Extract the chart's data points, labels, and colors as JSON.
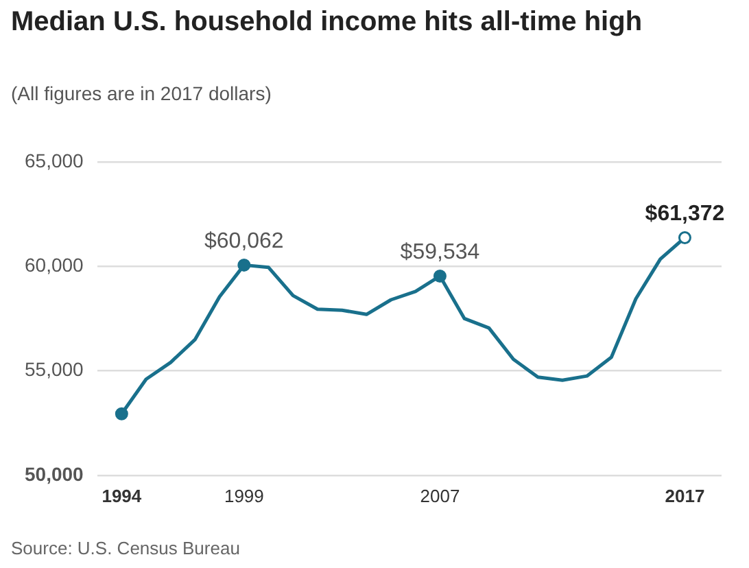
{
  "chart_data": {
    "type": "line",
    "title": "Median U.S. household income hits all-time high",
    "subtitle": "(All figures are in 2017 dollars)",
    "x": [
      1994,
      1995,
      1996,
      1997,
      1998,
      1999,
      2000,
      2001,
      2002,
      2003,
      2004,
      2005,
      2006,
      2007,
      2008,
      2009,
      2010,
      2011,
      2012,
      2013,
      2014,
      2015,
      2016,
      2017
    ],
    "series": [
      {
        "color": "#19708c",
        "values": [
          52940,
          54600,
          55400,
          56500,
          58550,
          60062,
          59950,
          58600,
          57950,
          57900,
          57700,
          58400,
          58800,
          59534,
          57500,
          57050,
          55550,
          54700,
          54550,
          54750,
          55650,
          58450,
          60350,
          61372
        ],
        "value_labels": [
          null,
          null,
          null,
          null,
          null,
          "$60,062",
          null,
          null,
          null,
          null,
          null,
          null,
          null,
          "$59,534",
          null,
          null,
          null,
          null,
          null,
          null,
          null,
          null,
          null,
          "$61,372"
        ]
      }
    ],
    "xlim": [
      1993,
      2018.5
    ],
    "xticks": [
      1994,
      1999,
      2007,
      2017
    ],
    "ylim": [
      50000,
      65000
    ],
    "yticks": [
      {
        "value": 50000,
        "label": "50,000"
      },
      {
        "value": 55000,
        "label": "55,000"
      },
      {
        "value": 60000,
        "label": "60,000"
      },
      {
        "value": 65000,
        "label": "65,000"
      }
    ],
    "grid": "y",
    "legend": false,
    "line_style": "solid",
    "annotations": [
      "Source: U.S. Census Bureau"
    ]
  }
}
